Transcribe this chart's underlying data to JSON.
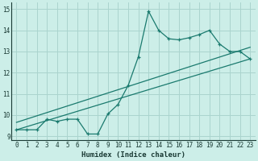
{
  "xlabel": "Humidex (Indice chaleur)",
  "bg_color": "#cceee8",
  "grid_color": "#aad4ce",
  "line_color": "#1a7a6e",
  "xlim": [
    -0.5,
    23.5
  ],
  "ylim": [
    8.8,
    15.3
  ],
  "xticks": [
    0,
    1,
    2,
    3,
    4,
    5,
    6,
    7,
    8,
    9,
    10,
    11,
    12,
    13,
    14,
    15,
    16,
    17,
    18,
    19,
    20,
    21,
    22,
    23
  ],
  "yticks": [
    9,
    10,
    11,
    12,
    13,
    14,
    15
  ],
  "line1_x": [
    0,
    1,
    2,
    3,
    4,
    5,
    6,
    7,
    8,
    9,
    10,
    11,
    12,
    13,
    14,
    15,
    16,
    17,
    18,
    19,
    20,
    21,
    22,
    23
  ],
  "line1_y": [
    9.3,
    9.3,
    9.3,
    9.8,
    9.7,
    9.8,
    9.8,
    9.1,
    9.1,
    10.05,
    10.5,
    11.4,
    12.75,
    14.9,
    14.0,
    13.6,
    13.55,
    13.65,
    13.8,
    14.0,
    13.35,
    13.0,
    13.0,
    12.65
  ],
  "line2_x": [
    0,
    23
  ],
  "line2_y": [
    9.3,
    12.65
  ],
  "line3_x": [
    0,
    23
  ],
  "line3_y": [
    9.65,
    13.2
  ]
}
